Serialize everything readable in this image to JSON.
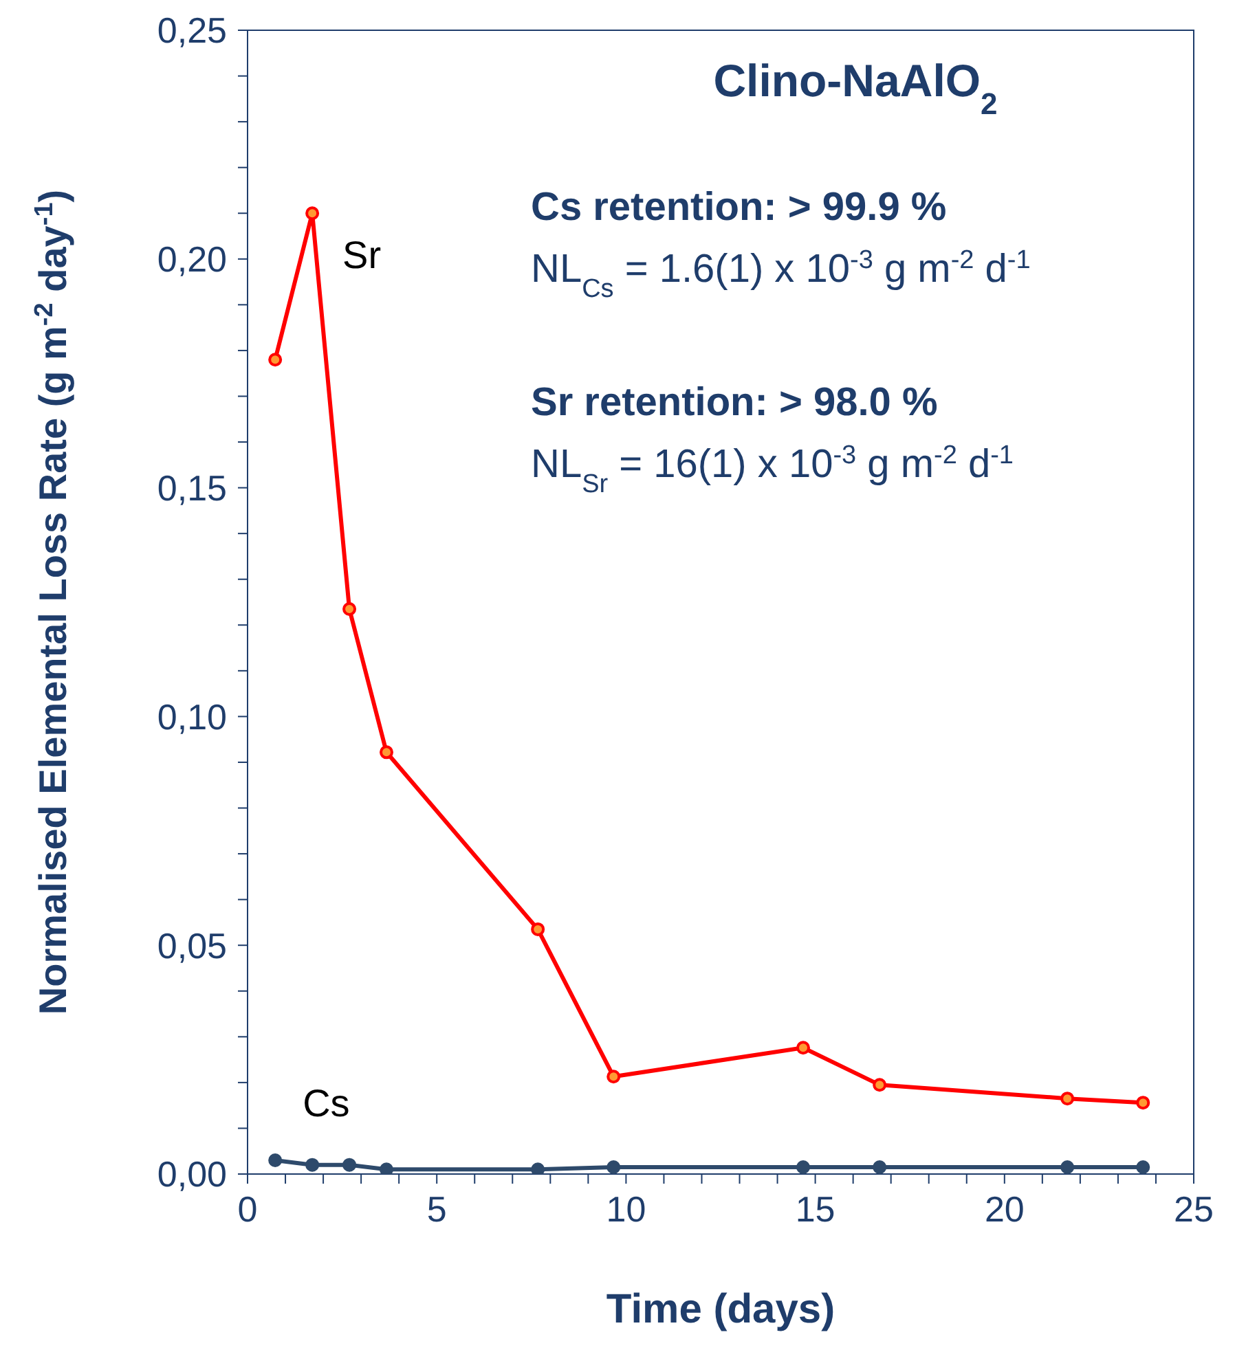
{
  "chart_data": {
    "type": "line",
    "title": "Clino-NaAlO$_{2}$",
    "xlabel": "Time (days)",
    "ylabel": "Normalised Elemental Loss Rate (g m$^{-2}$ day$^{-1}$)",
    "annotations": [
      "Cs retention:  > 99.9 %",
      "NL$_{Cs}$ = 1.6(1) x 10$^{-3}$ g m$^{-2}$ d$^{-1}$",
      "Sr retention: > 98.0 %",
      "NL$_{Sr}$ = 16(1) x 10$^{-3}$ g m$^{-2}$ d$^{-1}$"
    ],
    "x": [
      0.73,
      1.71,
      2.69,
      3.67,
      7.67,
      9.67,
      14.68,
      16.7,
      21.66,
      23.66
    ],
    "series": [
      {
        "name": "Sr",
        "color": "#ff0000",
        "values": [
          0.178,
          0.21,
          0.1235,
          0.0922,
          0.0535,
          0.0213,
          0.0276,
          0.0195,
          0.0165,
          0.0156
        ]
      },
      {
        "name": "Cs",
        "color": "#2e4a6b",
        "values": [
          0.003,
          0.002,
          0.002,
          0.001,
          0.001,
          0.0015,
          0.0015,
          0.0015,
          0.0015,
          0.0015
        ]
      }
    ],
    "xlim": [
      0,
      25
    ],
    "xticks": [
      0,
      {
        "value": 1,
        "label": null
      },
      {
        "value": 2,
        "label": null
      },
      {
        "value": 3,
        "label": null
      },
      {
        "value": 4,
        "label": null
      },
      5,
      {
        "value": 6,
        "label": null
      },
      {
        "value": 7,
        "label": null
      },
      {
        "value": 8,
        "label": null
      },
      {
        "value": 9,
        "label": null
      },
      10,
      {
        "value": 11,
        "label": null
      },
      {
        "value": 12,
        "label": null
      },
      {
        "value": 13,
        "label": null
      },
      {
        "value": 14,
        "label": null
      },
      15,
      {
        "value": 16,
        "label": null
      },
      {
        "value": 17,
        "label": null
      },
      {
        "value": 18,
        "label": null
      },
      {
        "value": 19,
        "label": null
      },
      20,
      {
        "value": 21,
        "label": null
      },
      {
        "value": 22,
        "label": null
      },
      {
        "value": 23,
        "label": null
      },
      {
        "value": 24,
        "label": null
      },
      25
    ],
    "ylim": [
      0,
      0.25
    ],
    "yticks": [
      {
        "value": 0,
        "label": "0,00"
      },
      {
        "value": 0.01,
        "label": null
      },
      {
        "value": 0.02,
        "label": null
      },
      {
        "value": 0.03,
        "label": null
      },
      {
        "value": 0.04,
        "label": null
      },
      {
        "value": 0.05,
        "label": "0,05"
      },
      {
        "value": 0.06,
        "label": null
      },
      {
        "value": 0.07,
        "label": null
      },
      {
        "value": 0.08,
        "label": null
      },
      {
        "value": 0.09,
        "label": null
      },
      {
        "value": 0.1,
        "label": "0,10"
      },
      {
        "value": 0.11,
        "label": null
      },
      {
        "value": 0.12,
        "label": null
      },
      {
        "value": 0.13,
        "label": null
      },
      {
        "value": 0.14,
        "label": null
      },
      {
        "value": 0.15,
        "label": "0,15"
      },
      {
        "value": 0.16,
        "label": null
      },
      {
        "value": 0.17,
        "label": null
      },
      {
        "value": 0.18,
        "label": null
      },
      {
        "value": 0.19,
        "label": null
      },
      {
        "value": 0.2,
        "label": "0,20"
      },
      {
        "value": 0.21,
        "label": null
      },
      {
        "value": 0.22,
        "label": null
      },
      {
        "value": 0.23,
        "label": null
      },
      {
        "value": 0.24,
        "label": null
      },
      {
        "value": 0.25,
        "label": "0,25"
      }
    ],
    "grid": false,
    "marker": "circle",
    "line_style": "solid"
  }
}
